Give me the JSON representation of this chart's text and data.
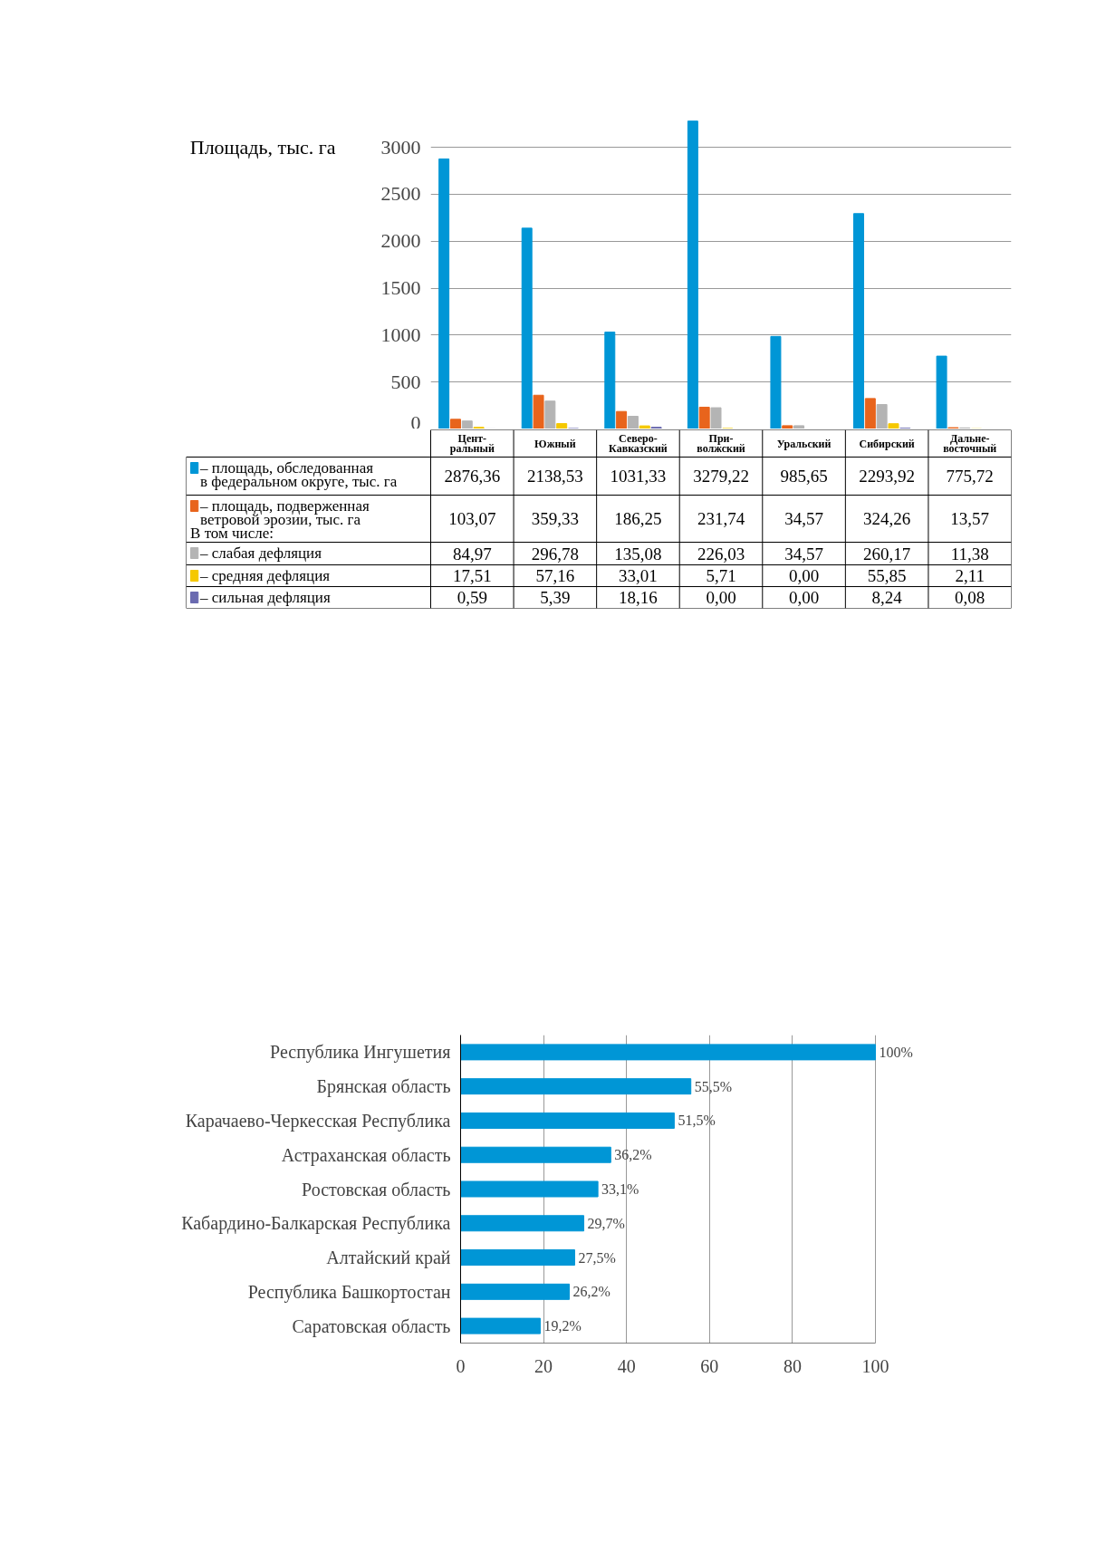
{
  "chart_data": [
    {
      "type": "bar",
      "ylabel": "Площадь, тыс. га",
      "categories": [
        "Цент-\nральный",
        "Южный",
        "Северо-\nКавказский",
        "При-\nволжский",
        "Уральский",
        "Сибирский",
        "Дальне-\nвосточный"
      ],
      "ylim": [
        0,
        3300
      ],
      "yticks": [
        0,
        500,
        1000,
        1500,
        2000,
        2500,
        3000
      ],
      "grid": "y",
      "legend": "bottom left",
      "series": [
        {
          "name": "– площадь, обследованная\nв федеральном округе, тыс. га",
          "color": "#0096d6",
          "values": [
            2876.36,
            2138.53,
            1031.33,
            3279.22,
            985.65,
            2293.92,
            775.72
          ],
          "value_labels": [
            "2876,36",
            "2138,53",
            "1031,33",
            "3279,22",
            "985,65",
            "2293,92",
            "775,72"
          ]
        },
        {
          "name": "– площадь, подверженная\n    ветровой эрозии, тыс. га",
          "color": "#e8641c",
          "values": [
            103.07,
            359.33,
            186.25,
            231.74,
            34.57,
            324.26,
            13.57
          ],
          "value_labels": [
            "103,07",
            "359,33",
            "186,25",
            "231,74",
            "34,57",
            "324,26",
            "13,57"
          ]
        },
        {
          "name": "– слабая дефляция",
          "color": "#b4b4b4",
          "values": [
            84.97,
            296.78,
            135.08,
            226.03,
            34.57,
            260.17,
            11.38
          ],
          "value_labels": [
            "84,97",
            "296,78",
            "135,08",
            "226,03",
            "34,57",
            "260,17",
            "11,38"
          ]
        },
        {
          "name": "– средняя дефляция",
          "color": "#f5c800",
          "values": [
            17.51,
            57.16,
            33.01,
            5.71,
            0.0,
            55.85,
            2.11
          ],
          "value_labels": [
            "17,51",
            "57,16",
            "33,01",
            "5,71",
            "0,00",
            "55,85",
            "2,11"
          ]
        },
        {
          "name": "– сильная дефляция",
          "color": "#6a6ab0",
          "values": [
            0.59,
            5.39,
            18.16,
            0.0,
            0.0,
            8.24,
            0.08
          ],
          "value_labels": [
            "0,59",
            "5,39",
            "18,16",
            "0,00",
            "0,00",
            "8,24",
            "0,08"
          ]
        }
      ],
      "annotations": [
        "В том числе:"
      ]
    },
    {
      "type": "bar",
      "orientation": "horizontal",
      "categories": [
        "Республика Ингушетия",
        "Брянская область",
        "Карачаево-Черкесская Республика",
        "Астраханская область",
        "Ростовская область",
        "Кабардино-Балкарская Республика",
        "Алтайский край",
        "Республика Башкортостан",
        "Саратовская область"
      ],
      "values": [
        100,
        55.5,
        51.5,
        36.2,
        33.1,
        29.7,
        27.5,
        26.2,
        19.2
      ],
      "color": "#0096d6",
      "value_labels": [
        "100%",
        "55,5%",
        "51,5%",
        "36,2%",
        "33,1%",
        "29,7%",
        "27,5%",
        "26,2%",
        "19,2%"
      ],
      "xlim": [
        0,
        100
      ],
      "xticks": [
        0,
        20,
        40,
        60,
        80,
        100
      ],
      "grid": "x"
    }
  ]
}
